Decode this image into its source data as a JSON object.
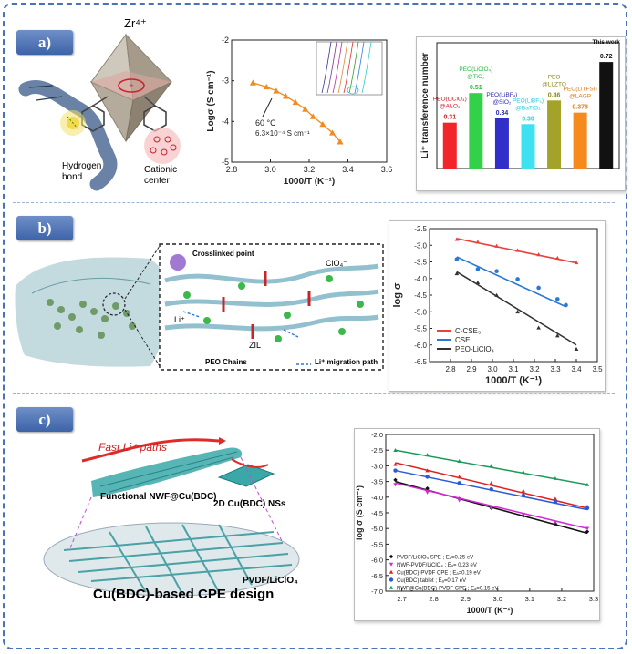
{
  "panels": {
    "a": {
      "label": "a)"
    },
    "b": {
      "label": "b)"
    },
    "c": {
      "label": "c)"
    }
  },
  "illustration_a": {
    "zr_label": "Zr⁴⁺",
    "hydrogen_bond": "Hydrogen\nbond",
    "cationic_center": "Cationic\ncenter"
  },
  "illustration_b": {
    "crosslinked_point": "Crosslinked point",
    "clo4": "ClO₄⁻",
    "li_plus": "Li⁺",
    "zil": "ZIL",
    "peo_chains": "PEO Chains",
    "li_path": "Li⁺ migration path"
  },
  "illustration_c": {
    "fast_paths": "Fast Li⁺ paths",
    "functional_nwf": "Functional NWF@Cu(BDC)",
    "nss": "2D Cu(BDC) NSs",
    "pvdf": "PVDF/LiClO₄",
    "design": "Cu(BDC)-based CPE design"
  },
  "colors": {
    "frame": "#4a72b8",
    "orange": "#f28a1c"
  },
  "chart_data": [
    {
      "type": "line",
      "id": "a1",
      "xlabel": "1000/T (K⁻¹)",
      "ylabel": "Logσ (S cm⁻¹)",
      "xlim": [
        2.8,
        3.6
      ],
      "ylim": [
        -5,
        -2
      ],
      "xticks": [
        2.8,
        3.0,
        3.2,
        3.4,
        3.6
      ],
      "yticks": [
        -2,
        -3,
        -4,
        -5
      ],
      "annotation": [
        "60 °C",
        "6.3×10⁻⁴ S cm⁻¹"
      ],
      "series": [
        {
          "x": [
            2.91,
            2.98,
            3.03,
            3.08,
            3.13,
            3.18,
            3.22,
            3.27,
            3.32,
            3.36
          ],
          "y": [
            -3.05,
            -3.15,
            -3.25,
            -3.38,
            -3.53,
            -3.7,
            -3.88,
            -4.07,
            -4.28,
            -4.5
          ],
          "color": "#f28a1c"
        }
      ]
    },
    {
      "type": "bar",
      "id": "a2",
      "ylabel": "Li⁺ transference number",
      "ylim": [
        0,
        0.85
      ],
      "categories": [
        "PEO(LiClO₄)@Al₂O₃",
        "PEO(LiClO₄)@TiO₂",
        "PEO(LiBF₄)@SiO₂",
        "PEO(LiBF₄)@BaTiO₃",
        "PEO@LLZTO",
        "PEO(LiTFSI)@LAGP",
        "This work"
      ],
      "values": [
        0.31,
        0.51,
        0.34,
        0.3,
        0.46,
        0.378,
        0.72
      ],
      "value_labels": [
        "0.31",
        "0.51",
        "0.34",
        "0.30",
        "0.46",
        "0.378",
        "0.72"
      ],
      "colors": [
        "#f2262a",
        "#33d04a",
        "#3030c8",
        "#3fe0f0",
        "#a3a32a",
        "#f78a1c",
        "#111111"
      ],
      "label_colors": [
        "#d21a20",
        "#25b83c",
        "#2b2bb4",
        "#2cc8dc",
        "#8a8a18",
        "#e27814",
        "#111111"
      ]
    },
    {
      "type": "line",
      "id": "b",
      "xlabel": "1000/T (K⁻¹)",
      "ylabel": "log σ",
      "xlim": [
        2.7,
        3.5
      ],
      "ylim": [
        -6.5,
        -2.5
      ],
      "xticks": [
        2.8,
        2.9,
        3.0,
        3.1,
        3.2,
        3.3,
        3.4,
        3.5
      ],
      "yticks": [
        -2.5,
        -3.0,
        -3.5,
        -4.0,
        -4.5,
        -5.0,
        -5.5,
        -6.0,
        -6.5
      ],
      "legend": "bottom-left",
      "series": [
        {
          "name": "C-CSE₃",
          "color": "#e8403a",
          "marker": "triangle",
          "x": [
            2.83,
            2.93,
            3.02,
            3.12,
            3.22,
            3.31,
            3.4
          ],
          "y": [
            -2.82,
            -2.9,
            -3.02,
            -3.15,
            -3.28,
            -3.38,
            -3.52
          ],
          "fit": [
            [
              2.83,
              -2.8
            ],
            [
              3.4,
              -3.53
            ]
          ]
        },
        {
          "name": "CSE",
          "color": "#2a78d6",
          "marker": "circle",
          "x": [
            2.83,
            2.93,
            3.02,
            3.12,
            3.22,
            3.31,
            3.35
          ],
          "y": [
            -3.42,
            -3.72,
            -3.78,
            -4.02,
            -4.28,
            -4.62,
            -4.8
          ],
          "fit": [
            [
              2.83,
              -3.35
            ],
            [
              3.35,
              -4.85
            ]
          ]
        },
        {
          "name": "PEO-LiClO₄",
          "color": "#333333",
          "marker": "triangle",
          "x": [
            2.83,
            2.93,
            3.02,
            3.12,
            3.22,
            3.31,
            3.4
          ],
          "y": [
            -3.85,
            -4.12,
            -4.5,
            -5.0,
            -5.48,
            -5.72,
            -6.12
          ],
          "fit": [
            [
              2.83,
              -3.8
            ],
            [
              3.4,
              -6.0
            ]
          ]
        }
      ]
    },
    {
      "type": "line",
      "id": "c",
      "xlabel": "1000/T (K⁻¹)",
      "ylabel": "log σ (S cm⁻¹)",
      "xlim": [
        2.65,
        3.3
      ],
      "ylim": [
        -7.0,
        -2.0
      ],
      "xticks": [
        2.7,
        2.8,
        2.9,
        3.0,
        3.1,
        3.2,
        3.3
      ],
      "yticks": [
        -2.0,
        -2.5,
        -3.0,
        -3.5,
        -4.0,
        -4.5,
        -5.0,
        -5.5,
        -6.0,
        -6.5,
        -7.0
      ],
      "legend": "bottom-left",
      "series": [
        {
          "name": "PVDF/LiClO₄ SPE ; Eₐ=0.25 eV",
          "color": "#111111",
          "marker": "diamond",
          "x": [
            2.68,
            2.78,
            2.88,
            2.98,
            3.08,
            3.18,
            3.28
          ],
          "y": [
            -3.45,
            -3.72,
            -4.05,
            -4.35,
            -4.6,
            -4.85,
            -5.1
          ],
          "fit": [
            [
              2.68,
              -3.5
            ],
            [
              3.28,
              -5.15
            ]
          ]
        },
        {
          "name": "NWF-PVDF/LiClO₄ ; Eₐ= 0.23 eV",
          "color": "#d22ad2",
          "marker": "triangle-down",
          "x": [
            2.68,
            2.78,
            2.88,
            2.98,
            3.08,
            3.18,
            3.28
          ],
          "y": [
            -3.6,
            -3.85,
            -4.1,
            -4.35,
            -4.55,
            -4.8,
            -5.0
          ],
          "fit": [
            [
              2.68,
              -3.55
            ],
            [
              3.28,
              -5.0
            ]
          ]
        },
        {
          "name": "Cu(BDC)-PVDF CPE ; Eₐ=0.19 eV",
          "color": "#e02020",
          "marker": "triangle",
          "x": [
            2.68,
            2.78,
            2.88,
            2.98,
            3.08,
            3.18,
            3.28
          ],
          "y": [
            -2.95,
            -3.15,
            -3.35,
            -3.55,
            -3.8,
            -4.05,
            -4.3
          ],
          "fit": [
            [
              2.68,
              -2.9
            ],
            [
              3.28,
              -4.35
            ]
          ]
        },
        {
          "name": "Cu(BDC) tablet ; Eₐ=0.17 eV",
          "color": "#2a5ad6",
          "marker": "circle",
          "x": [
            2.68,
            2.78,
            2.88,
            2.98,
            3.08,
            3.18,
            3.28
          ],
          "y": [
            -3.15,
            -3.35,
            -3.55,
            -3.75,
            -3.95,
            -4.15,
            -4.35
          ],
          "fit": [
            [
              2.68,
              -3.15
            ],
            [
              3.28,
              -4.4
            ]
          ]
        },
        {
          "name": "NWF@Cu(BDC)-PVDF CPE ; Eₐ=0.15 eV",
          "color": "#1a9a5a",
          "marker": "triangle",
          "x": [
            2.68,
            2.78,
            2.88,
            2.98,
            3.08,
            3.18,
            3.28
          ],
          "y": [
            -2.5,
            -2.65,
            -2.85,
            -3.0,
            -3.2,
            -3.4,
            -3.6
          ],
          "fit": [
            [
              2.68,
              -2.5
            ],
            [
              3.28,
              -3.6
            ]
          ]
        }
      ]
    }
  ]
}
